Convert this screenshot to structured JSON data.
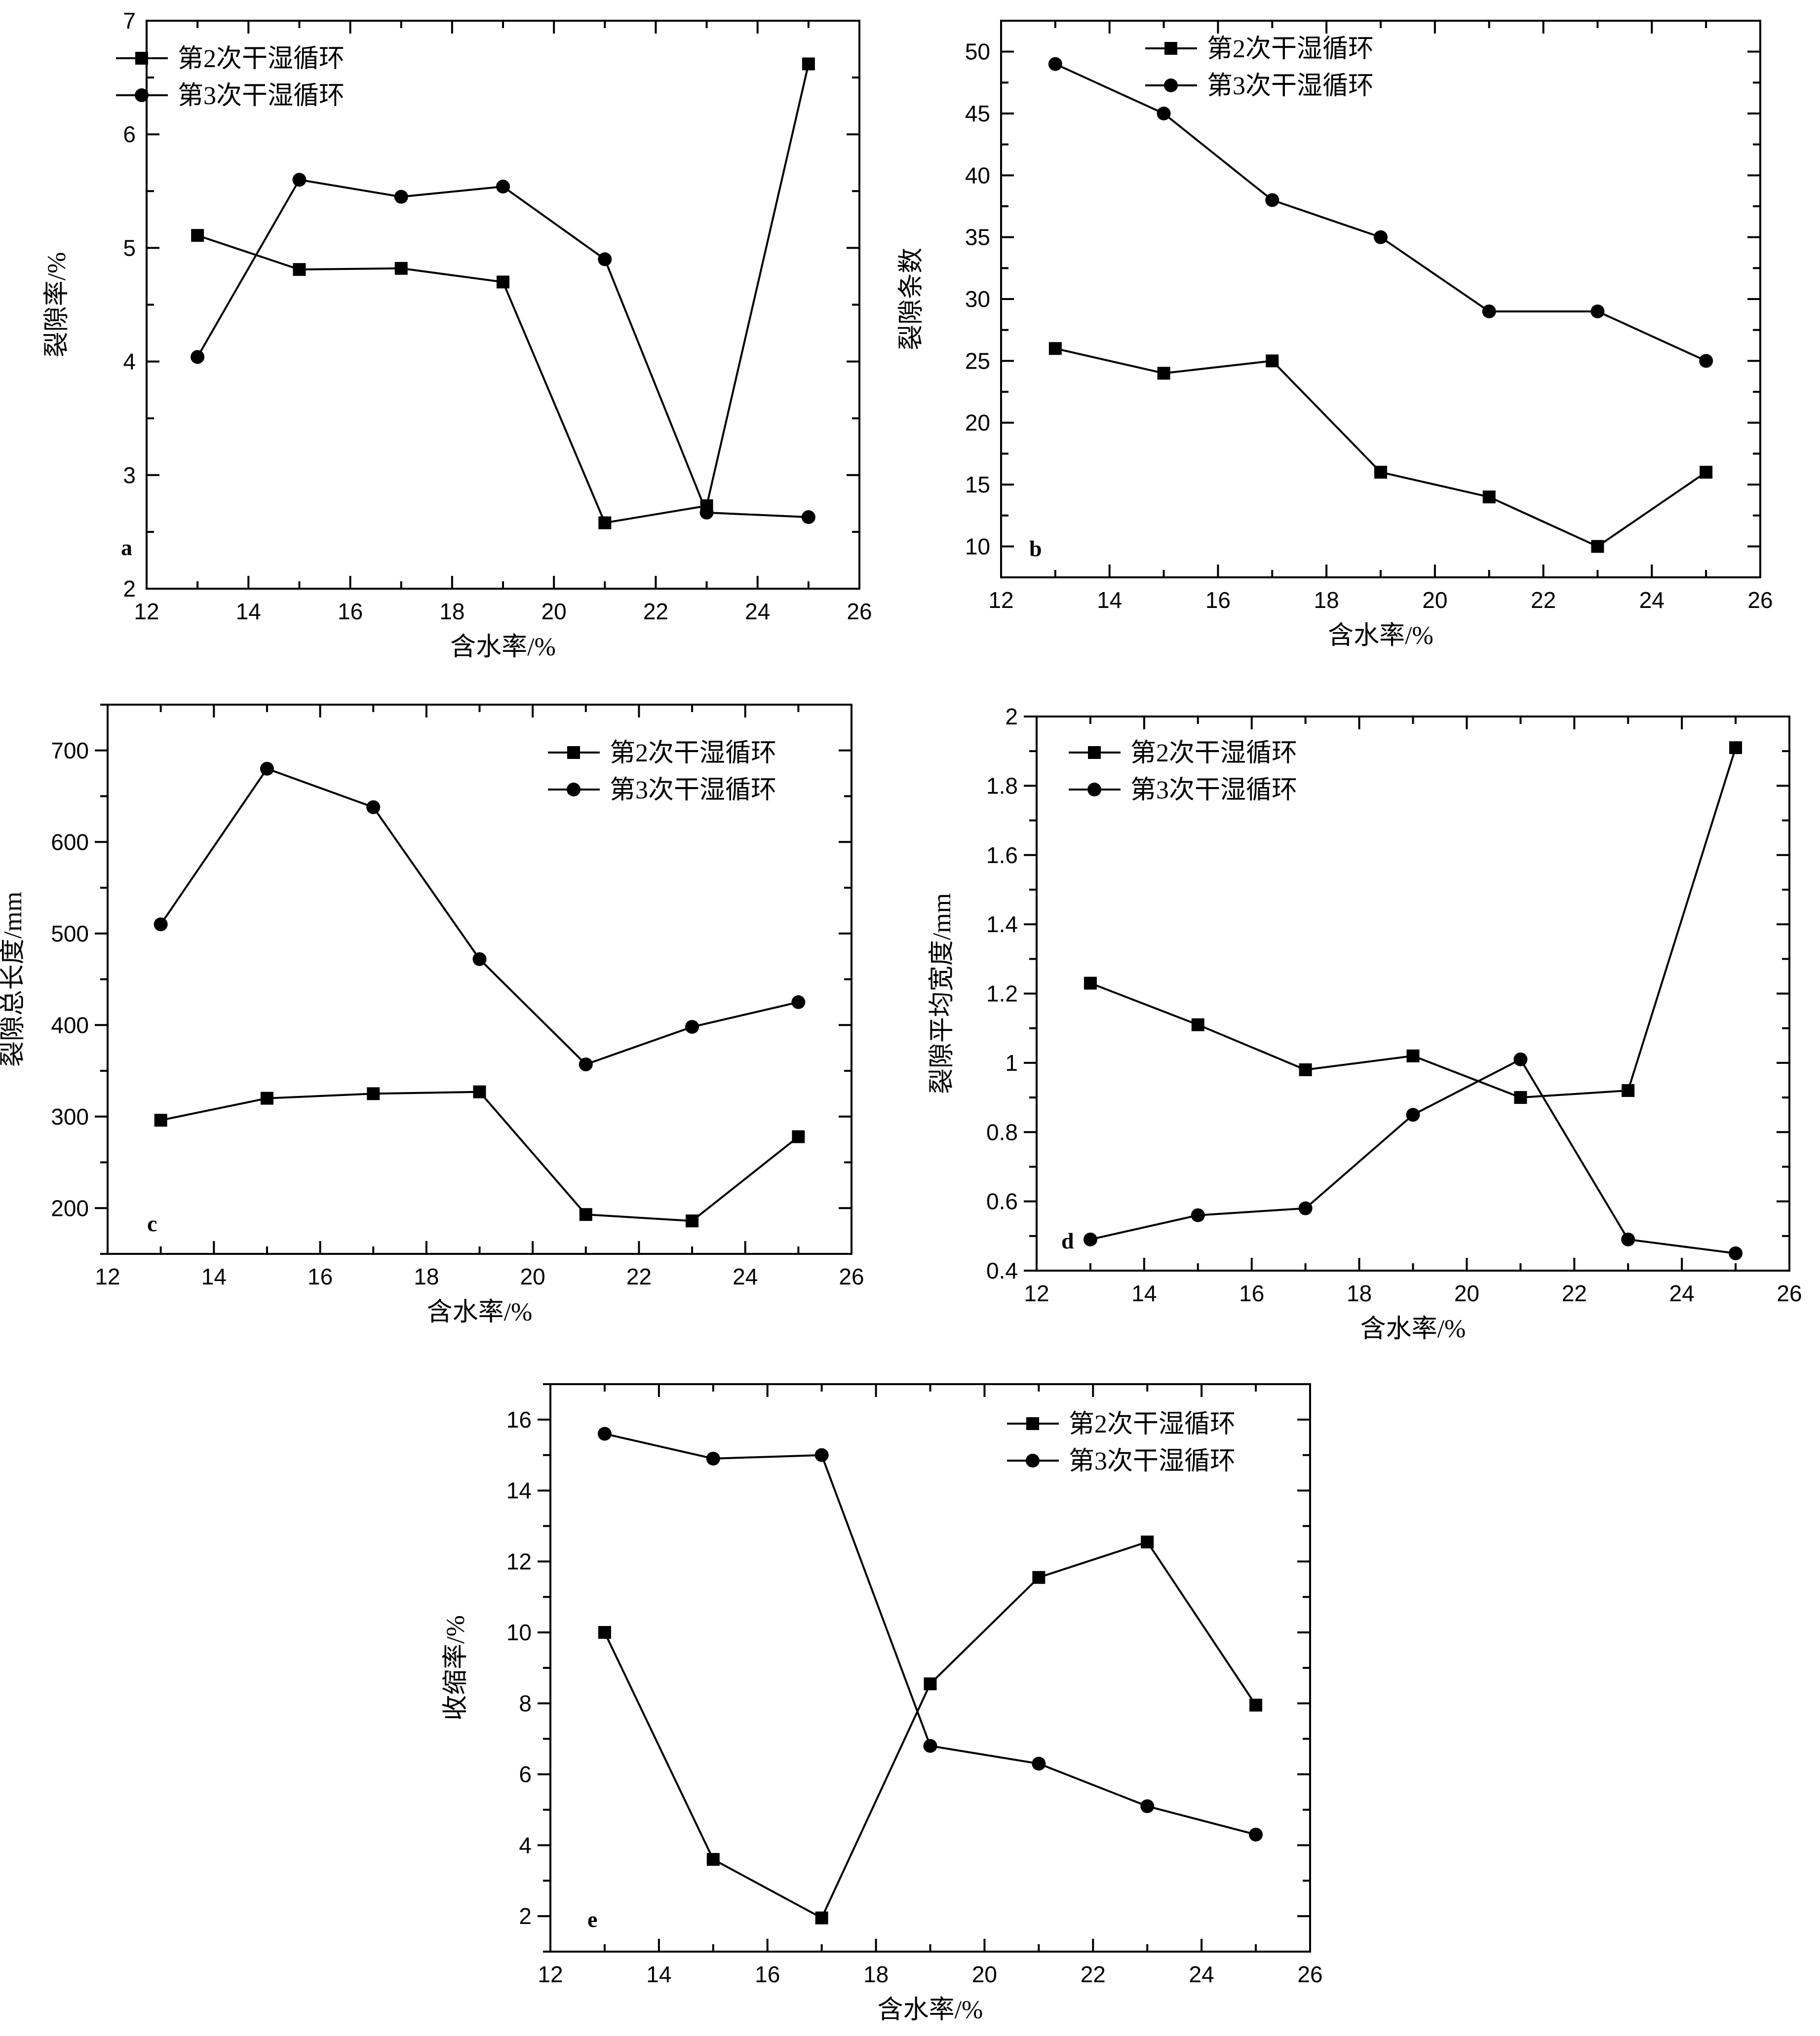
{
  "chart_data": [
    {
      "type": "line",
      "panel_label": "a",
      "xlabel": "含水率/%",
      "ylabel": "裂隙率/%",
      "xlim": [
        12,
        26
      ],
      "ylim": [
        2,
        7
      ],
      "xticks": [
        12,
        14,
        16,
        18,
        20,
        22,
        24,
        26
      ],
      "yticks": [
        2,
        3,
        4,
        5,
        6,
        7
      ],
      "legend_position": "top-left",
      "grid": false,
      "x": [
        13,
        15,
        17,
        19,
        21,
        23,
        25
      ],
      "series": [
        {
          "name": "第2次干湿循环",
          "marker": "square",
          "values": [
            5.11,
            4.81,
            4.82,
            4.7,
            2.58,
            2.73,
            6.62
          ]
        },
        {
          "name": "第3次干湿循环",
          "marker": "circle",
          "values": [
            4.04,
            5.6,
            5.45,
            5.54,
            4.9,
            2.67,
            2.63
          ]
        }
      ]
    },
    {
      "type": "line",
      "panel_label": "b",
      "xlabel": "含水率/%",
      "ylabel": "裂隙条数",
      "xlim": [
        12,
        26
      ],
      "ylim": [
        7.5,
        52.5
      ],
      "xticks": [
        12,
        14,
        16,
        18,
        20,
        22,
        24,
        26
      ],
      "yticks": [
        10,
        15,
        20,
        25,
        30,
        35,
        40,
        45,
        50
      ],
      "legend_position": "top-center",
      "grid": false,
      "x": [
        13,
        15,
        17,
        19,
        21,
        23,
        25
      ],
      "series": [
        {
          "name": "第2次干湿循环",
          "marker": "square",
          "values": [
            26,
            24,
            25,
            16,
            14,
            10,
            16
          ]
        },
        {
          "name": "第3次干湿循环",
          "marker": "circle",
          "values": [
            49,
            45,
            38,
            35,
            29,
            29,
            25
          ]
        }
      ]
    },
    {
      "type": "line",
      "panel_label": "c",
      "xlabel": "含水率/%",
      "ylabel": "裂隙总长度/mm",
      "xlim": [
        12,
        26
      ],
      "ylim": [
        150,
        750
      ],
      "xticks": [
        12,
        14,
        16,
        18,
        20,
        22,
        24,
        26
      ],
      "yticks": [
        200,
        300,
        400,
        500,
        600,
        700
      ],
      "legend_position": "top-right",
      "grid": false,
      "x": [
        13,
        15,
        17,
        19,
        21,
        23,
        25
      ],
      "series": [
        {
          "name": "第2次干湿循环",
          "marker": "square",
          "values": [
            296,
            320,
            325,
            327,
            193,
            186,
            278
          ]
        },
        {
          "name": "第3次干湿循环",
          "marker": "circle",
          "values": [
            510,
            680,
            638,
            472,
            357,
            398,
            425
          ]
        }
      ]
    },
    {
      "type": "line",
      "panel_label": "d",
      "xlabel": "含水率/%",
      "ylabel": "裂隙平均宽度/mm",
      "xlim": [
        12,
        26
      ],
      "ylim": [
        0.4,
        2.0
      ],
      "xticks": [
        12,
        14,
        16,
        18,
        20,
        22,
        24,
        26
      ],
      "yticks": [
        0.4,
        0.6,
        0.8,
        1.0,
        1.2,
        1.4,
        1.6,
        1.8,
        2.0
      ],
      "legend_position": "top-left",
      "grid": false,
      "x": [
        13,
        15,
        17,
        19,
        21,
        23,
        25
      ],
      "series": [
        {
          "name": "第2次干湿循环",
          "marker": "square",
          "values": [
            1.23,
            1.11,
            0.98,
            1.02,
            0.9,
            0.92,
            1.91
          ]
        },
        {
          "name": "第3次干湿循环",
          "marker": "circle",
          "values": [
            0.49,
            0.56,
            0.58,
            0.85,
            1.01,
            0.49,
            0.45
          ]
        }
      ]
    },
    {
      "type": "line",
      "panel_label": "e",
      "xlabel": "含水率/%",
      "ylabel": "收缩率/%",
      "xlim": [
        12,
        26
      ],
      "ylim": [
        1,
        17
      ],
      "xticks": [
        12,
        14,
        16,
        18,
        20,
        22,
        24,
        26
      ],
      "yticks": [
        2,
        4,
        6,
        8,
        10,
        12,
        14,
        16
      ],
      "legend_position": "top-right",
      "grid": false,
      "x": [
        13,
        15,
        17,
        19,
        21,
        23,
        25
      ],
      "series": [
        {
          "name": "第2次干湿循环",
          "marker": "square",
          "values": [
            10.0,
            3.6,
            1.95,
            8.55,
            11.55,
            12.55,
            7.95
          ]
        },
        {
          "name": "第3次干湿循环",
          "marker": "circle",
          "values": [
            15.6,
            14.9,
            15.0,
            6.8,
            6.3,
            5.1,
            4.3
          ]
        }
      ]
    }
  ]
}
